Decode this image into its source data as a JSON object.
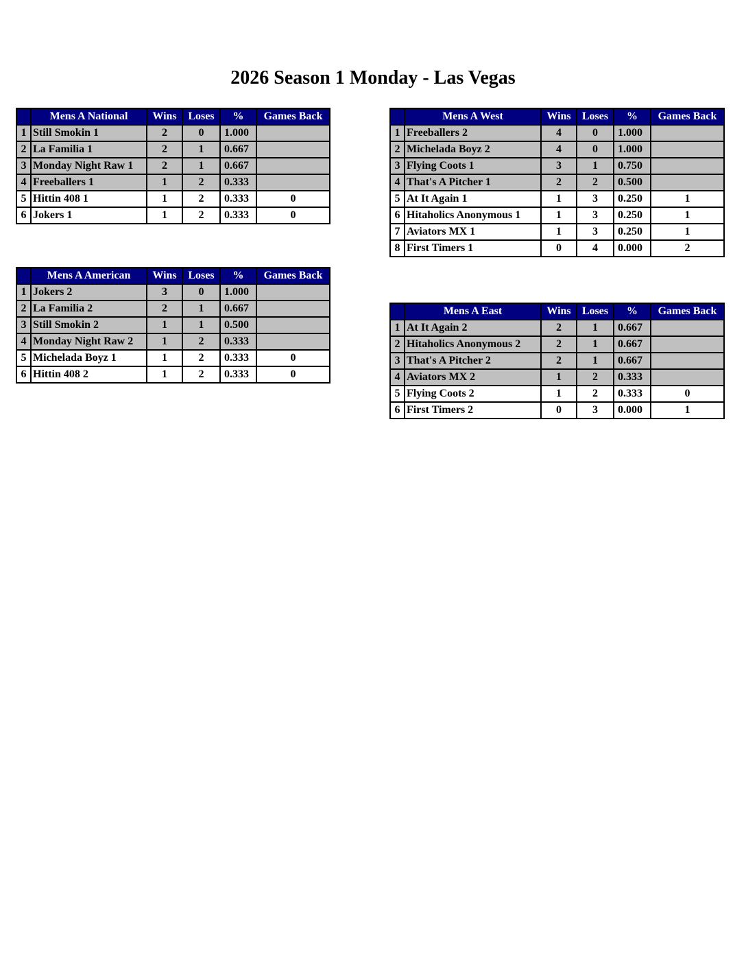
{
  "title": "2026 Season 1 Monday - Las Vegas",
  "colors": {
    "header_bg": "#000080",
    "header_text": "#ffffff",
    "highlight_row": "#c0c0c0"
  },
  "columns": {
    "wins": "Wins",
    "loses": "Loses",
    "pct": "%",
    "games_back": "Games Back"
  },
  "divisions": [
    {
      "id": "national",
      "name": "Mens A National",
      "rows": [
        {
          "rank": "1",
          "team": "Still Smokin 1",
          "wins": "2",
          "loses": "0",
          "pct": "1.000",
          "gb": "",
          "highlighted": true
        },
        {
          "rank": "2",
          "team": "La Familia 1",
          "wins": "2",
          "loses": "1",
          "pct": "0.667",
          "gb": "",
          "highlighted": true
        },
        {
          "rank": "3",
          "team": "Monday Night Raw 1",
          "wins": "2",
          "loses": "1",
          "pct": "0.667",
          "gb": "",
          "highlighted": true
        },
        {
          "rank": "4",
          "team": "Freeballers 1",
          "wins": "1",
          "loses": "2",
          "pct": "0.333",
          "gb": "",
          "highlighted": true
        },
        {
          "rank": "5",
          "team": "Hittin 408 1",
          "wins": "1",
          "loses": "2",
          "pct": "0.333",
          "gb": "0",
          "highlighted": false
        },
        {
          "rank": "6",
          "team": "Jokers 1",
          "wins": "1",
          "loses": "2",
          "pct": "0.333",
          "gb": "0",
          "highlighted": false
        }
      ]
    },
    {
      "id": "american",
      "name": "Mens A American",
      "rows": [
        {
          "rank": "1",
          "team": "Jokers 2",
          "wins": "3",
          "loses": "0",
          "pct": "1.000",
          "gb": "",
          "highlighted": true
        },
        {
          "rank": "2",
          "team": "La Familia 2",
          "wins": "2",
          "loses": "1",
          "pct": "0.667",
          "gb": "",
          "highlighted": true
        },
        {
          "rank": "3",
          "team": "Still Smokin 2",
          "wins": "1",
          "loses": "1",
          "pct": "0.500",
          "gb": "",
          "highlighted": true
        },
        {
          "rank": "4",
          "team": "Monday Night Raw 2",
          "wins": "1",
          "loses": "2",
          "pct": "0.333",
          "gb": "",
          "highlighted": true
        },
        {
          "rank": "5",
          "team": "Michelada Boyz 1",
          "wins": "1",
          "loses": "2",
          "pct": "0.333",
          "gb": "0",
          "highlighted": false
        },
        {
          "rank": "6",
          "team": "Hittin 408 2",
          "wins": "1",
          "loses": "2",
          "pct": "0.333",
          "gb": "0",
          "highlighted": false
        }
      ]
    },
    {
      "id": "west",
      "name": "Mens A West",
      "rows": [
        {
          "rank": "1",
          "team": "Freeballers 2",
          "wins": "4",
          "loses": "0",
          "pct": "1.000",
          "gb": "",
          "highlighted": true
        },
        {
          "rank": "2",
          "team": "Michelada Boyz 2",
          "wins": "4",
          "loses": "0",
          "pct": "1.000",
          "gb": "",
          "highlighted": true
        },
        {
          "rank": "3",
          "team": "Flying Coots 1",
          "wins": "3",
          "loses": "1",
          "pct": "0.750",
          "gb": "",
          "highlighted": true
        },
        {
          "rank": "4",
          "team": "That's A Pitcher 1",
          "wins": "2",
          "loses": "2",
          "pct": "0.500",
          "gb": "",
          "highlighted": true
        },
        {
          "rank": "5",
          "team": "At It Again 1",
          "wins": "1",
          "loses": "3",
          "pct": "0.250",
          "gb": "1",
          "highlighted": false
        },
        {
          "rank": "6",
          "team": "Hitaholics Anonymous 1",
          "wins": "1",
          "loses": "3",
          "pct": "0.250",
          "gb": "1",
          "highlighted": false
        },
        {
          "rank": "7",
          "team": "Aviators MX 1",
          "wins": "1",
          "loses": "3",
          "pct": "0.250",
          "gb": "1",
          "highlighted": false
        },
        {
          "rank": "8",
          "team": "First Timers 1",
          "wins": "0",
          "loses": "4",
          "pct": "0.000",
          "gb": "2",
          "highlighted": false
        }
      ]
    },
    {
      "id": "east",
      "name": "Mens A East",
      "rows": [
        {
          "rank": "1",
          "team": "At It Again 2",
          "wins": "2",
          "loses": "1",
          "pct": "0.667",
          "gb": "",
          "highlighted": true
        },
        {
          "rank": "2",
          "team": "Hitaholics Anonymous 2",
          "wins": "2",
          "loses": "1",
          "pct": "0.667",
          "gb": "",
          "highlighted": true
        },
        {
          "rank": "3",
          "team": "That's A Pitcher 2",
          "wins": "2",
          "loses": "1",
          "pct": "0.667",
          "gb": "",
          "highlighted": true
        },
        {
          "rank": "4",
          "team": "Aviators MX 2",
          "wins": "1",
          "loses": "2",
          "pct": "0.333",
          "gb": "",
          "highlighted": true
        },
        {
          "rank": "5",
          "team": "Flying Coots 2",
          "wins": "1",
          "loses": "2",
          "pct": "0.333",
          "gb": "0",
          "highlighted": false
        },
        {
          "rank": "6",
          "team": "First Timers 2",
          "wins": "0",
          "loses": "3",
          "pct": "0.000",
          "gb": "1",
          "highlighted": false
        }
      ]
    }
  ]
}
